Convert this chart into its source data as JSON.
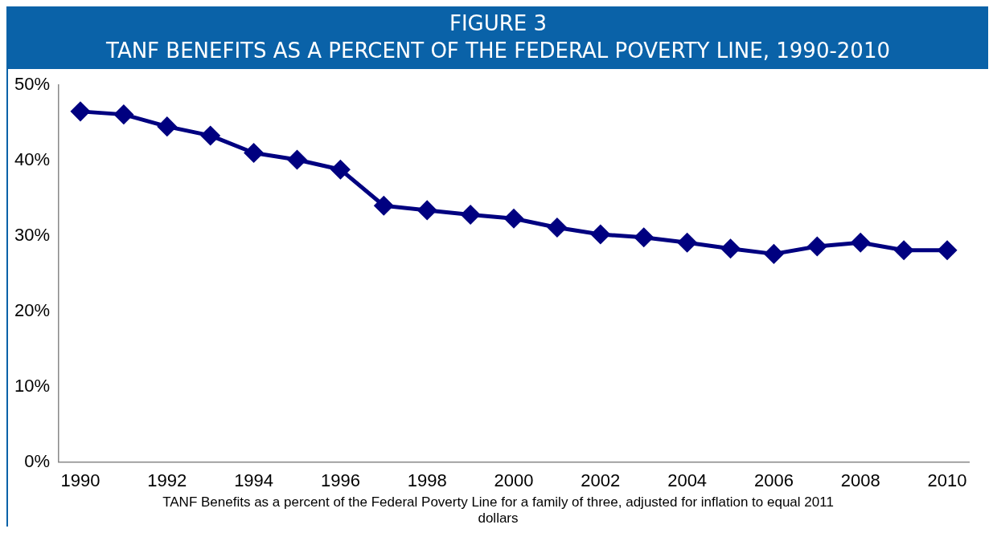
{
  "chart_data": {
    "type": "line",
    "title": "FIGURE 3",
    "subtitle": "TANF BENEFITS AS A PERCENT OF THE FEDERAL POVERTY LINE, 1990-2010",
    "categories": [
      "1990",
      null,
      "1992",
      null,
      "1994",
      null,
      "1996",
      null,
      "1998",
      null,
      "2000",
      null,
      "2002",
      null,
      "2004",
      null,
      "2006",
      null,
      "2008",
      null,
      "2010"
    ],
    "series": [
      {
        "color": "#000080",
        "values": [
          46.5,
          46.1,
          44.5,
          43.3,
          41.0,
          40.1,
          38.8,
          34.0,
          33.4,
          32.8,
          32.3,
          31.1,
          30.2,
          29.8,
          29.1,
          28.3,
          27.6,
          28.6,
          29.1,
          28.1,
          28.1
        ]
      }
    ],
    "ylim": [
      0,
      50
    ],
    "yticks": [
      {
        "value": 0,
        "label": "0%"
      },
      {
        "value": 10,
        "label": "10%"
      },
      {
        "value": 20,
        "label": "20%"
      },
      {
        "value": 30,
        "label": "30%"
      },
      {
        "value": 40,
        "label": "40%"
      },
      {
        "value": 50,
        "label": "50%"
      }
    ],
    "grid": false,
    "legend": false,
    "marker": "diamond",
    "line_style": "solid",
    "annotations": [
      "TANF Benefits as a percent of the Federal Poverty Line for a family of three, adjusted for inflation to equal 2011 dollars"
    ]
  }
}
